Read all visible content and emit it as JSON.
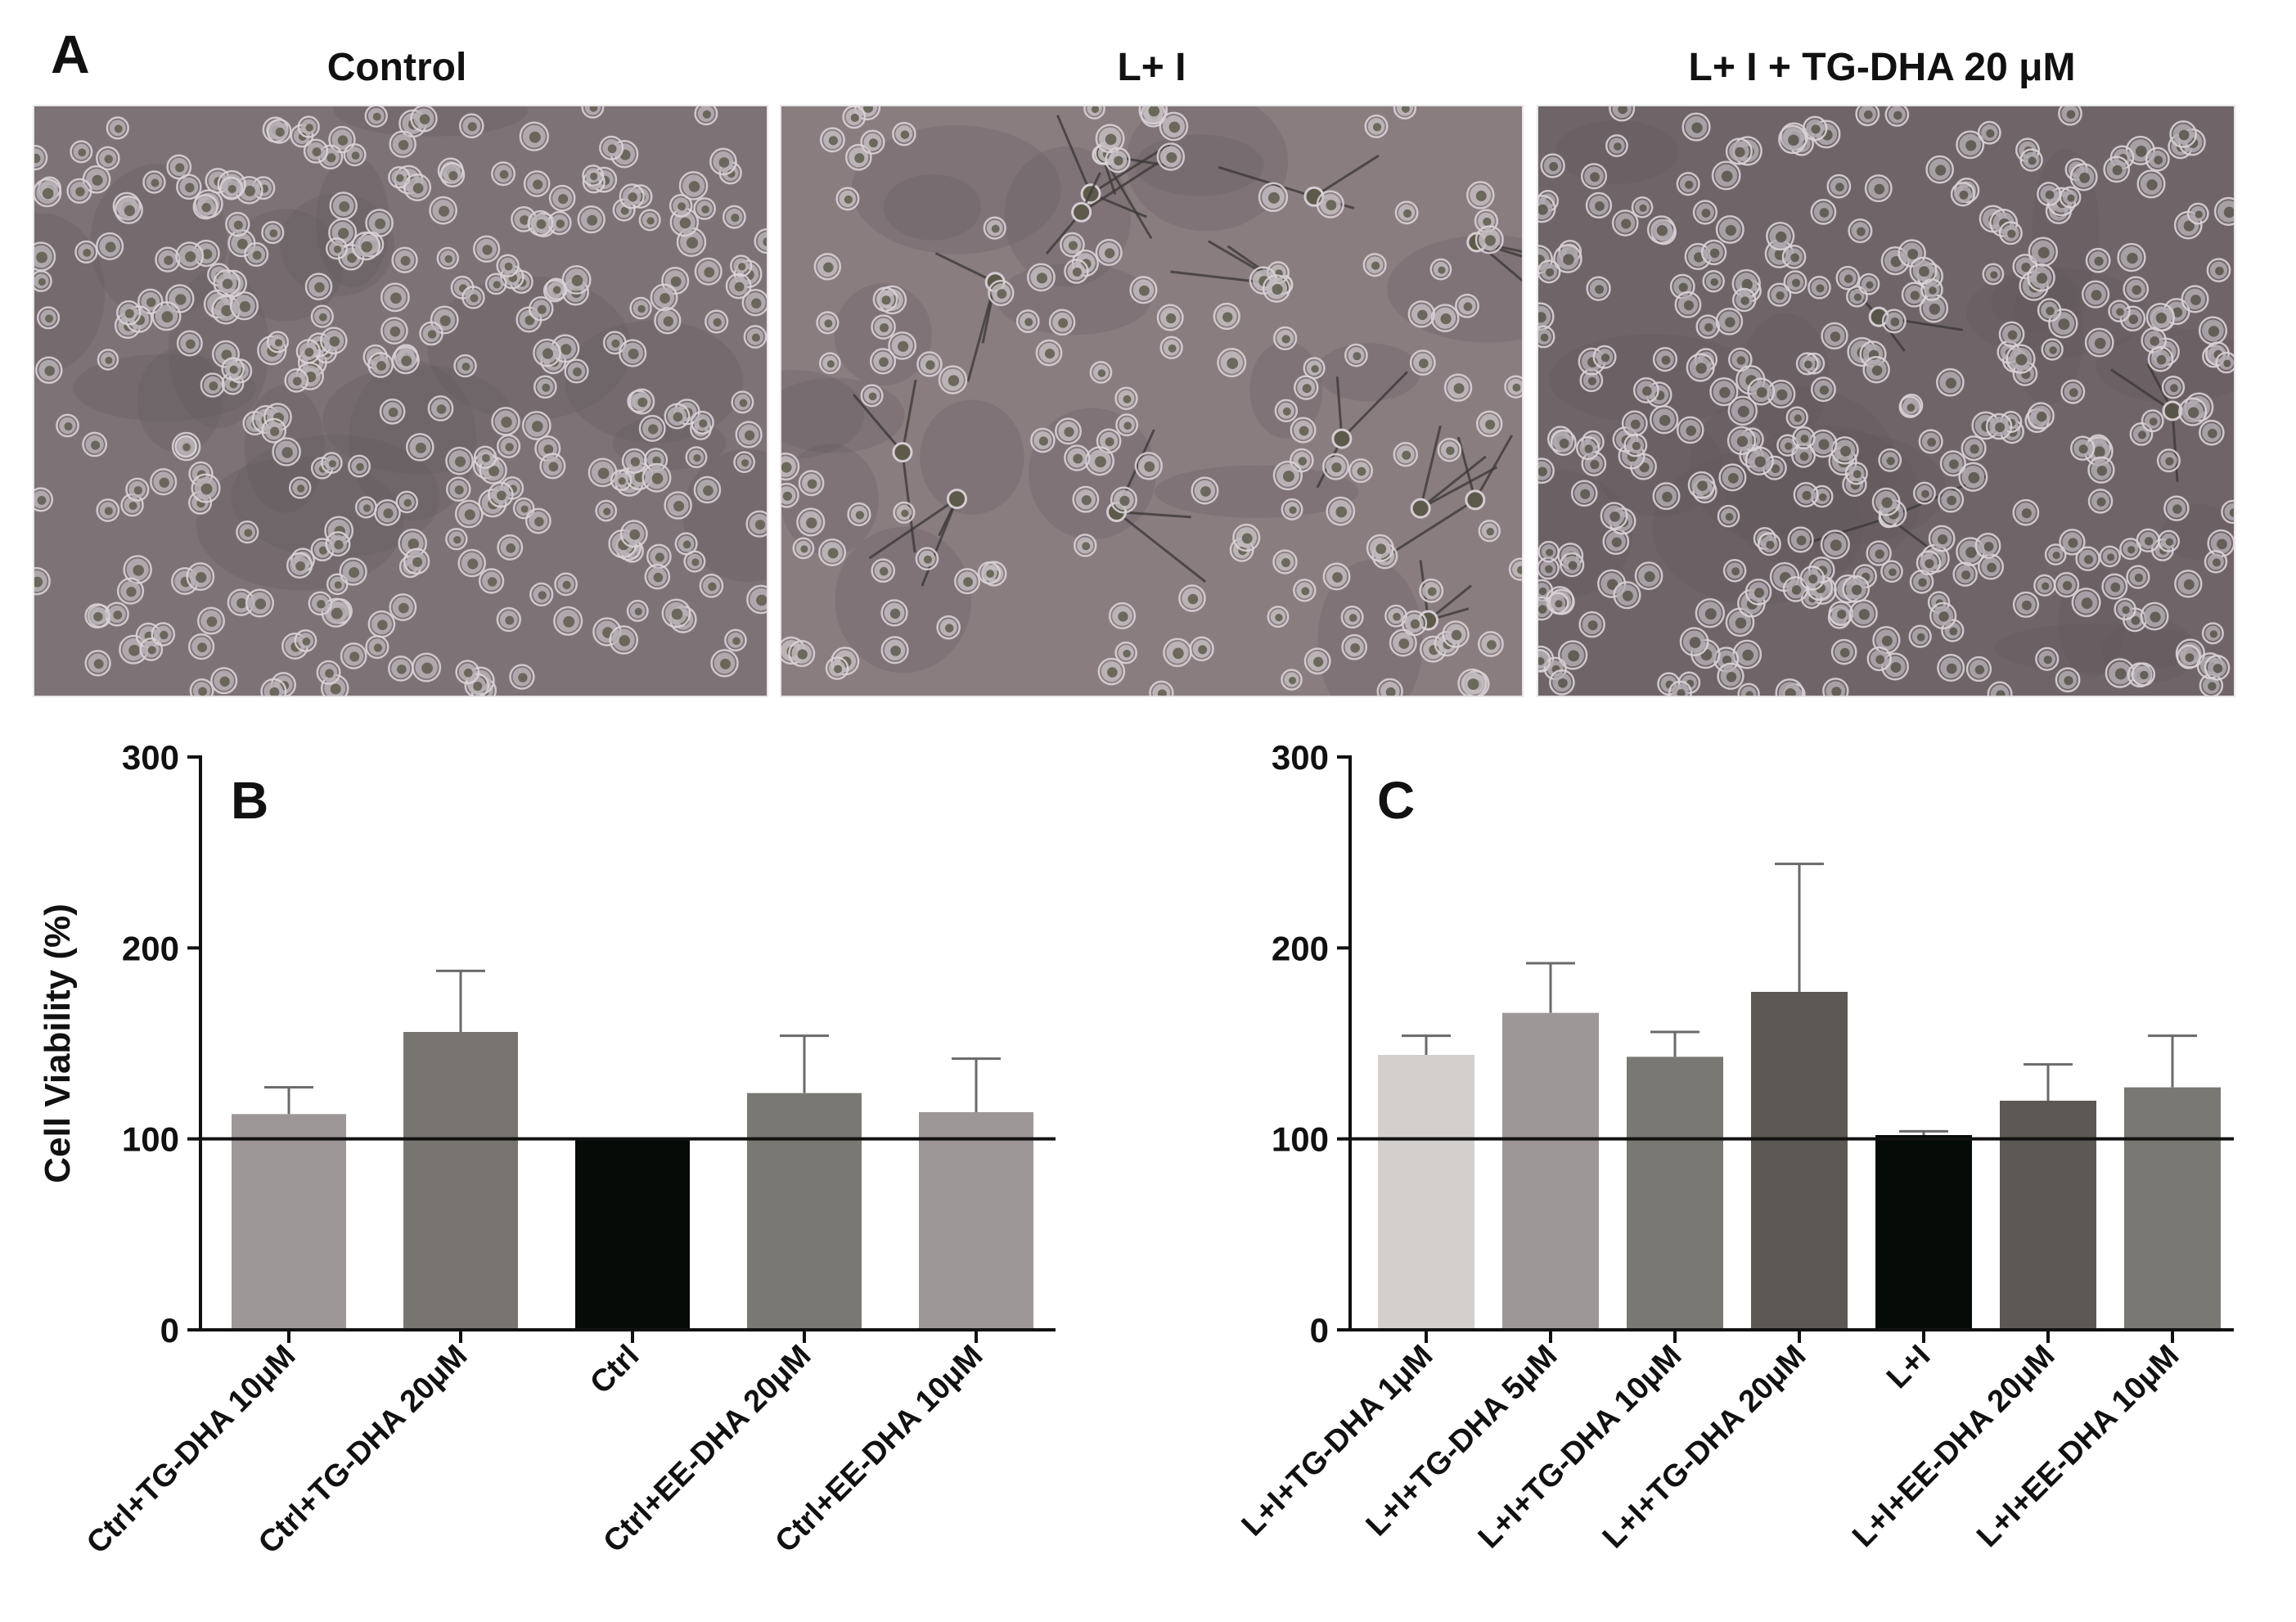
{
  "panel_a": {
    "letter": "A",
    "images": [
      {
        "title": "Control",
        "description": "confluent-cells-micrograph",
        "cells": 300,
        "neurites": 0,
        "bg": "#7d7276",
        "cell_color": "#b9b2b6",
        "cell_core": "#5f5a4e"
      },
      {
        "title": "L+ I",
        "description": "sparse-differentiated-cells-micrograph",
        "cells": 140,
        "neurites": 14,
        "bg": "#8a7d80",
        "cell_color": "#c3bcc0",
        "cell_core": "#5d5a4c"
      },
      {
        "title": "L+ I + TG-DHA 20 μM",
        "description": "dense-cells-micrograph",
        "cells": 320,
        "neurites": 3,
        "bg": "#6f6569",
        "cell_color": "#b1aab0",
        "cell_core": "#57544a"
      }
    ]
  },
  "colors": {
    "axis": "#111111",
    "reference_line": "#111111",
    "error_bar": "#6a6a6a"
  },
  "chart_data": [
    {
      "panel": "B",
      "type": "bar",
      "ylabel": "Cell Viability (%)",
      "xlabel": "",
      "ylim": [
        0,
        300
      ],
      "yticks": [
        0,
        100,
        200,
        300
      ],
      "reference_line": 100,
      "categories": [
        "Ctrl+TG-DHA 10μM",
        "Ctrl+TG-DHA 20μM",
        "Ctrl",
        "Ctrl+EE-DHA 20μM",
        "Ctrl+EE-DHA 10μM"
      ],
      "values": [
        113,
        156,
        100,
        124,
        114
      ],
      "errors": [
        14,
        32,
        0,
        30,
        28
      ],
      "colors": [
        "#9d9897",
        "#787570",
        "#050c07",
        "#7a7873",
        "#9d9897"
      ]
    },
    {
      "panel": "C",
      "type": "bar",
      "ylabel": "",
      "xlabel": "",
      "ylim": [
        0,
        300
      ],
      "yticks": [
        0,
        100,
        200,
        300
      ],
      "reference_line": 100,
      "categories": [
        "L+I+TG-DHA 1μM",
        "L+I+TG-DHA 5μM",
        "L+I+TG-DHA 10μM",
        "L+I+TG-DHA 20μM",
        "L+I",
        "L+I+EE-DHA 20μM",
        "L+I+EE-DHA 10μM"
      ],
      "values": [
        144,
        166,
        143,
        177,
        102,
        120,
        127
      ],
      "errors": [
        10,
        26,
        13,
        67,
        2,
        19,
        27
      ],
      "colors": [
        "#d2cfcc",
        "#9d9897",
        "#7a7873",
        "#5c5954",
        "#050c07",
        "#5c5954",
        "#7a7873"
      ]
    }
  ]
}
